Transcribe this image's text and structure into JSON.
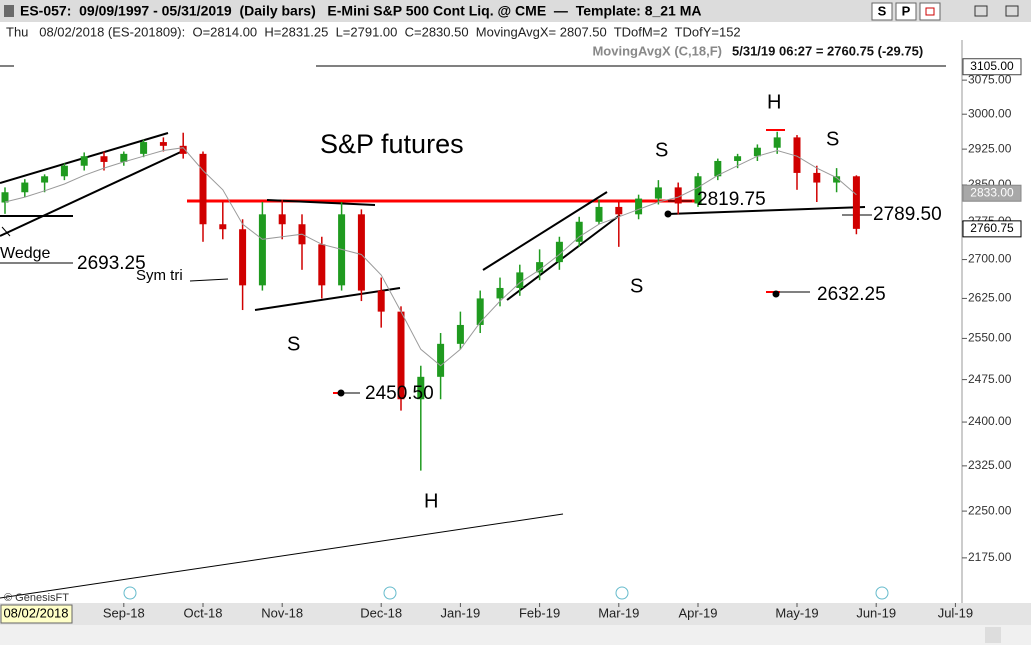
{
  "header": {
    "title": "ES-057:  09/09/1997 - 05/31/2019  (Daily bars)   E-Mini S&P 500 Cont Liq. @ CME  —  Template: 8_21 MA",
    "buttons": [
      "S",
      "P"
    ],
    "bar_info": "Thu   08/02/2018 (ES-201809):  O=2814.00  H=2831.25  L=2791.00  C=2830.50  MovingAvgX= 2807.50  TDofM=2  TDofY=152",
    "indicator_value": "5/31/19 06:27 = 2760.75 (-29.75)"
  },
  "footer": {
    "cursor_date": "08/02/2018",
    "copyright": "© GenesisFT"
  },
  "chart_data": {
    "type": "candlestick",
    "title": "S&P futures",
    "categories": [
      null,
      null,
      null,
      null,
      null,
      null,
      "Sep-18",
      null,
      null,
      null,
      "Oct-18",
      null,
      null,
      null,
      "Nov-18",
      null,
      null,
      null,
      null,
      "Dec-18",
      null,
      null,
      null,
      "Jan-19",
      null,
      null,
      null,
      "Feb-19",
      null,
      null,
      null,
      "Mar-19",
      null,
      null,
      null,
      "Apr-19",
      null,
      null,
      null,
      null,
      "May-19",
      null,
      null,
      null,
      "Jun-19",
      null,
      null,
      null,
      "Jul-19"
    ],
    "open": [
      2814,
      2835,
      2855,
      2868,
      2890,
      2910,
      2898,
      2915,
      2940,
      2932,
      2915,
      2770,
      2760,
      2650,
      2790,
      2770,
      2730,
      2650,
      2790,
      2640,
      2600,
      2440,
      2480,
      2540,
      2575,
      2625,
      2645,
      2675,
      2695,
      2735,
      2775,
      2805,
      2790,
      2822,
      2845,
      2812,
      2868,
      2900,
      2910,
      2928,
      2950,
      2875,
      2855,
      2868,
      null,
      null,
      null,
      null,
      null
    ],
    "high": [
      2845,
      2862,
      2872,
      2895,
      2918,
      2920,
      2920,
      2945,
      2950,
      2960,
      2920,
      2815,
      2780,
      2815,
      2820,
      2790,
      2745,
      2815,
      2800,
      2665,
      2610,
      2500,
      2560,
      2600,
      2640,
      2665,
      2690,
      2720,
      2745,
      2785,
      2820,
      2815,
      2830,
      2860,
      2855,
      2875,
      2905,
      2915,
      2935,
      2962,
      2955,
      2890,
      2885,
      2870,
      null,
      null,
      null,
      null,
      null
    ],
    "low": [
      2791,
      2825,
      2835,
      2860,
      2880,
      2880,
      2890,
      2908,
      2920,
      2905,
      2735,
      2740,
      2603,
      2640,
      2740,
      2680,
      2625,
      2640,
      2620,
      2570,
      2420,
      2317,
      2440,
      2530,
      2560,
      2610,
      2630,
      2660,
      2680,
      2725,
      2770,
      2725,
      2780,
      2810,
      2790,
      2805,
      2860,
      2885,
      2900,
      2915,
      2840,
      2815,
      2835,
      2750,
      null,
      null,
      null,
      null,
      null
    ],
    "close": [
      2835,
      2855,
      2868,
      2890,
      2910,
      2898,
      2915,
      2940,
      2932,
      2915,
      2770,
      2760,
      2650,
      2790,
      2770,
      2730,
      2650,
      2790,
      2640,
      2600,
      2440,
      2480,
      2540,
      2575,
      2625,
      2645,
      2675,
      2695,
      2735,
      2775,
      2805,
      2790,
      2822,
      2845,
      2812,
      2868,
      2900,
      2910,
      2928,
      2950,
      2875,
      2855,
      2868,
      2760.75,
      null,
      null,
      null,
      null,
      null
    ],
    "up_color": "#1f9a1f",
    "down_color": "#d00000",
    "moving_average": {
      "name": "MovingAvgX (C,18,F)",
      "color": "#9a9a9a",
      "values": [
        2815,
        2825,
        2838,
        2852,
        2870,
        2885,
        2898,
        2910,
        2922,
        2928,
        2880,
        2840,
        2770,
        2740,
        2745,
        2750,
        2730,
        2720,
        2710,
        2670,
        2600,
        2530,
        2500,
        2530,
        2580,
        2620,
        2655,
        2680,
        2710,
        2745,
        2770,
        2785,
        2800,
        2815,
        2825,
        2845,
        2870,
        2890,
        2910,
        2922,
        2910,
        2885,
        2865,
        2830,
        null,
        null,
        null,
        null,
        null
      ]
    },
    "log": true,
    "ylim": [
      2105,
      3127
    ],
    "yticks": [
      {
        "value": 2175,
        "label": "2175.00"
      },
      {
        "value": 2250,
        "label": "2250.00"
      },
      {
        "value": 2325,
        "label": "2325.00"
      },
      {
        "value": 2400,
        "label": "2400.00"
      },
      {
        "value": 2475,
        "label": "2475.00"
      },
      {
        "value": 2550,
        "label": "2550.00"
      },
      {
        "value": 2625,
        "label": "2625.00"
      },
      {
        "value": 2700,
        "label": "2700.00"
      },
      {
        "value": 2775,
        "label": "2775.00"
      },
      {
        "value": 2850,
        "label": "2850.00"
      },
      {
        "value": 2925,
        "label": "2925.00"
      },
      {
        "value": 3000,
        "label": "3000.00"
      },
      {
        "value": 3075,
        "label": "3075.00"
      }
    ],
    "price_markers": [
      {
        "value": 3105,
        "label": "3105.00"
      },
      {
        "value": 2833,
        "label": "2833.00"
      },
      {
        "value": 2760.75,
        "label": "2760.75"
      }
    ],
    "grid": false,
    "annotations": [
      "S",
      "H",
      "S",
      "S",
      "H",
      "S",
      "2819.75",
      "2789.50",
      "2632.25",
      "2450.50",
      "2693.25",
      "Wedge",
      "Sym tri"
    ]
  }
}
